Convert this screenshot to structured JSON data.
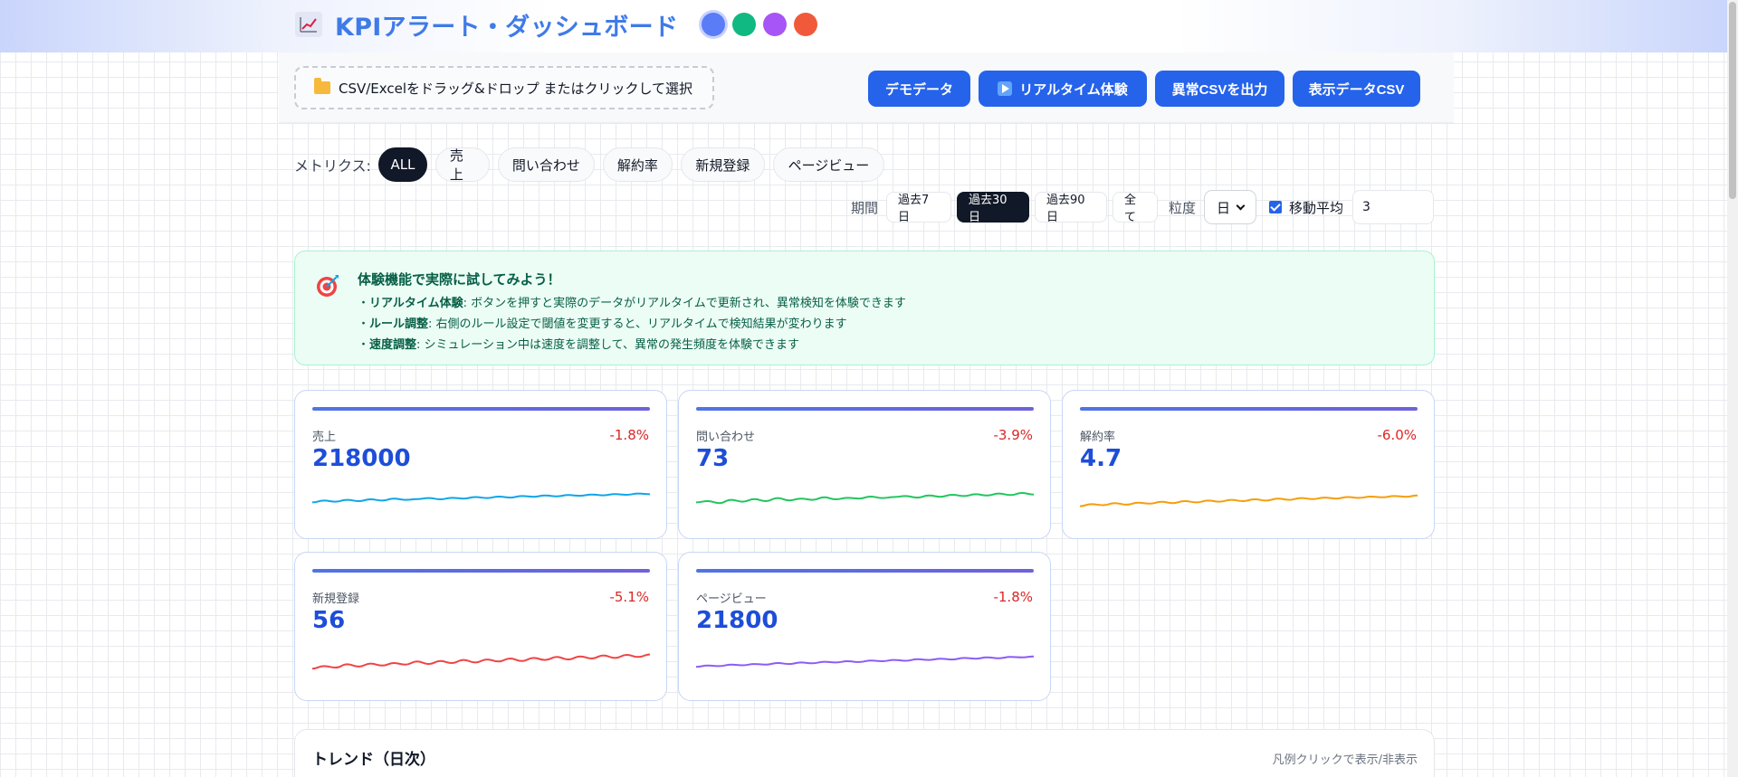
{
  "header": {
    "title": "KPIアラート・ダッシュボード",
    "icon": "chart-increasing-icon",
    "theme_colors": [
      "#5b7cf7",
      "#10b981",
      "#a855f7",
      "#f05a3a"
    ]
  },
  "toolbar": {
    "dropzone_label": "CSV/Excelをドラッグ&ドロップ またはクリックして選択",
    "buttons": [
      "デモデータ",
      "リアルタイム体験",
      "異常CSVを出力",
      "表示データCSV"
    ]
  },
  "metrics": {
    "label": "メトリクス:",
    "items": [
      "ALL",
      "売上",
      "問い合わせ",
      "解約率",
      "新規登録",
      "ページビュー"
    ],
    "active": "ALL"
  },
  "filters": {
    "period_label": "期間",
    "periods": [
      "過去7日",
      "過去30日",
      "過去90日",
      "全て"
    ],
    "active_period": "過去30日",
    "granularity_label": "粒度",
    "granularity_value": "日",
    "moving_average_label": "移動平均",
    "moving_average_checked": true,
    "moving_average_window": "3"
  },
  "info": {
    "title": "体験機能で実際に試してみよう！",
    "lines": [
      {
        "bullet": "・",
        "head": "リアルタイム体験",
        "text": ": ボタンを押すと実際のデータがリアルタイムで更新され、異常検知を体験できます"
      },
      {
        "bullet": "・",
        "head": "ルール調整",
        "text": ": 右側のルール設定で閾値を変更すると、リアルタイムで検知結果が変わります"
      },
      {
        "bullet": "・",
        "head": "速度調整",
        "text": ": シミュレーション中は速度を調整して、異常の発生頻度を体験できます"
      }
    ]
  },
  "cards": [
    {
      "name": "売上",
      "value": "218000",
      "delta": "-1.8%",
      "color": "#0ea5e9",
      "spark": [
        0.45,
        0.52,
        0.48,
        0.55,
        0.5,
        0.57,
        0.52,
        0.6,
        0.55,
        0.58,
        0.62,
        0.57,
        0.63,
        0.6,
        0.66,
        0.62,
        0.68,
        0.64,
        0.7,
        0.67,
        0.72,
        0.69,
        0.74,
        0.71,
        0.76,
        0.73,
        0.78,
        0.75,
        0.8,
        0.77
      ]
    },
    {
      "name": "問い合わせ",
      "value": "73",
      "delta": "-3.9%",
      "color": "#22c55e",
      "spark": [
        0.45,
        0.5,
        0.42,
        0.55,
        0.48,
        0.58,
        0.5,
        0.62,
        0.53,
        0.6,
        0.55,
        0.65,
        0.57,
        0.63,
        0.6,
        0.68,
        0.62,
        0.66,
        0.7,
        0.64,
        0.72,
        0.67,
        0.75,
        0.7,
        0.77,
        0.72,
        0.8,
        0.74,
        0.82,
        0.76
      ]
    },
    {
      "name": "解約率",
      "value": "4.7",
      "delta": "-6.0%",
      "color": "#f59e0b",
      "spark": [
        0.3,
        0.38,
        0.34,
        0.42,
        0.36,
        0.44,
        0.4,
        0.47,
        0.42,
        0.5,
        0.45,
        0.52,
        0.48,
        0.55,
        0.5,
        0.57,
        0.52,
        0.6,
        0.55,
        0.62,
        0.58,
        0.64,
        0.6,
        0.66,
        0.63,
        0.68,
        0.65,
        0.7,
        0.67,
        0.72
      ]
    },
    {
      "name": "新規登録",
      "value": "56",
      "delta": "-5.1%",
      "color": "#ef4444",
      "spark": [
        0.28,
        0.38,
        0.32,
        0.45,
        0.36,
        0.48,
        0.4,
        0.5,
        0.44,
        0.56,
        0.46,
        0.58,
        0.5,
        0.62,
        0.52,
        0.64,
        0.56,
        0.68,
        0.58,
        0.7,
        0.62,
        0.74,
        0.64,
        0.76,
        0.68,
        0.8,
        0.7,
        0.82,
        0.74,
        0.84
      ]
    },
    {
      "name": "ページビュー",
      "value": "21800",
      "delta": "-1.8%",
      "color": "#8b5cf6",
      "spark": [
        0.35,
        0.4,
        0.38,
        0.44,
        0.41,
        0.46,
        0.44,
        0.5,
        0.46,
        0.52,
        0.49,
        0.55,
        0.52,
        0.57,
        0.54,
        0.6,
        0.57,
        0.62,
        0.59,
        0.65,
        0.62,
        0.67,
        0.64,
        0.7,
        0.67,
        0.72,
        0.69,
        0.74,
        0.72,
        0.76
      ]
    }
  ],
  "trend": {
    "title": "トレンド（日次）",
    "hint": "凡例クリックで表示/非表示"
  }
}
